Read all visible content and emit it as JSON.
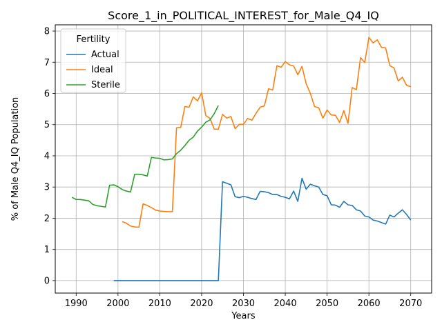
{
  "chart_data": {
    "type": "line",
    "title": "Score_1_in_POLITICAL_INTEREST_for_Male_Q4_IQ",
    "xlabel": "Years",
    "ylabel": "% of Male Q4_IQ Population",
    "xlim": [
      1985,
      2075
    ],
    "ylim": [
      -0.4,
      8.2
    ],
    "xticks": [
      1990,
      2000,
      2010,
      2020,
      2030,
      2040,
      2050,
      2060,
      2070
    ],
    "yticks": [
      0,
      1,
      2,
      3,
      4,
      5,
      6,
      7,
      8
    ],
    "grid": true,
    "legend": {
      "title": "Fertility",
      "position": "top-left"
    },
    "series": [
      {
        "name": "Actual",
        "color": "#1f77b4",
        "x": [
          1999,
          2000,
          2001,
          2002,
          2003,
          2004,
          2005,
          2006,
          2007,
          2008,
          2009,
          2010,
          2011,
          2012,
          2013,
          2014,
          2015,
          2016,
          2017,
          2018,
          2019,
          2020,
          2021,
          2022,
          2023,
          2024,
          2025,
          2026,
          2027,
          2028,
          2029,
          2030,
          2031,
          2032,
          2033,
          2034,
          2035,
          2036,
          2037,
          2038,
          2039,
          2040,
          2041,
          2042,
          2043,
          2044,
          2045,
          2046,
          2047,
          2048,
          2049,
          2050,
          2051,
          2052,
          2053,
          2054,
          2055,
          2056,
          2057,
          2058,
          2059,
          2060,
          2061,
          2062,
          2063,
          2064,
          2065,
          2066,
          2067,
          2068,
          2069,
          2070
        ],
        "y": [
          0,
          0,
          0,
          0,
          0,
          0,
          0,
          0,
          0,
          0,
          0,
          0,
          0,
          0,
          0,
          0,
          0,
          0,
          0,
          0,
          0,
          0,
          0,
          0,
          0,
          0,
          3.17,
          3.12,
          3.07,
          2.69,
          2.66,
          2.7,
          2.67,
          2.63,
          2.6,
          2.86,
          2.85,
          2.82,
          2.76,
          2.76,
          2.7,
          2.67,
          2.62,
          2.87,
          2.54,
          3.28,
          2.93,
          3.09,
          3.04,
          3.0,
          2.76,
          2.72,
          2.43,
          2.42,
          2.35,
          2.54,
          2.43,
          2.41,
          2.27,
          2.23,
          2.07,
          2.04,
          1.94,
          1.91,
          1.86,
          1.81,
          2.1,
          2.04,
          2.16,
          2.27,
          2.12,
          1.94
        ]
      },
      {
        "name": "Ideal",
        "color": "#ff7f0e",
        "x": [
          2001,
          2002,
          2003,
          2004,
          2005,
          2006,
          2007,
          2008,
          2009,
          2010,
          2011,
          2012,
          2013,
          2014,
          2015,
          2016,
          2017,
          2018,
          2019,
          2020,
          2021,
          2022,
          2023,
          2024,
          2025,
          2026,
          2027,
          2028,
          2029,
          2030,
          2031,
          2032,
          2033,
          2034,
          2035,
          2036,
          2037,
          2038,
          2039,
          2040,
          2041,
          2042,
          2043,
          2044,
          2045,
          2046,
          2047,
          2048,
          2049,
          2050,
          2051,
          2052,
          2053,
          2054,
          2055,
          2056,
          2057,
          2058,
          2059,
          2060,
          2061,
          2062,
          2063,
          2064,
          2065,
          2066,
          2067,
          2068,
          2069,
          2070
        ],
        "y": [
          1.89,
          1.84,
          1.75,
          1.72,
          1.71,
          2.46,
          2.41,
          2.34,
          2.26,
          2.23,
          2.22,
          2.21,
          2.21,
          4.9,
          4.91,
          5.58,
          5.56,
          5.89,
          5.76,
          6.02,
          5.29,
          5.2,
          4.86,
          4.85,
          5.33,
          5.21,
          5.26,
          4.87,
          5.01,
          5.01,
          5.2,
          5.14,
          5.36,
          5.56,
          5.6,
          6.15,
          6.11,
          6.89,
          6.84,
          7.02,
          6.92,
          6.88,
          6.6,
          6.87,
          6.31,
          6.0,
          5.58,
          5.54,
          5.21,
          5.47,
          5.31,
          5.3,
          5.07,
          5.45,
          5.04,
          6.19,
          6.12,
          7.15,
          6.99,
          7.8,
          7.62,
          7.72,
          7.48,
          7.46,
          6.89,
          6.82,
          6.4,
          6.52,
          6.26,
          6.22
        ]
      },
      {
        "name": "Sterile",
        "color": "#2ca02c",
        "x": [
          1989,
          1990,
          1991,
          1992,
          1993,
          1994,
          1995,
          1996,
          1997,
          1998,
          1999,
          2000,
          2001,
          2002,
          2003,
          2004,
          2005,
          2006,
          2007,
          2008,
          2009,
          2010,
          2011,
          2012,
          2013,
          2014,
          2015,
          2016,
          2017,
          2018,
          2019,
          2020,
          2021,
          2022,
          2023,
          2024
        ],
        "y": [
          2.67,
          2.6,
          2.6,
          2.58,
          2.56,
          2.44,
          2.4,
          2.38,
          2.36,
          3.06,
          3.07,
          3.01,
          2.92,
          2.87,
          2.84,
          3.41,
          3.41,
          3.39,
          3.35,
          3.95,
          3.93,
          3.92,
          3.87,
          3.88,
          3.9,
          4.07,
          4.18,
          4.33,
          4.5,
          4.6,
          4.79,
          4.92,
          5.08,
          5.15,
          5.35,
          5.61
        ]
      }
    ]
  }
}
